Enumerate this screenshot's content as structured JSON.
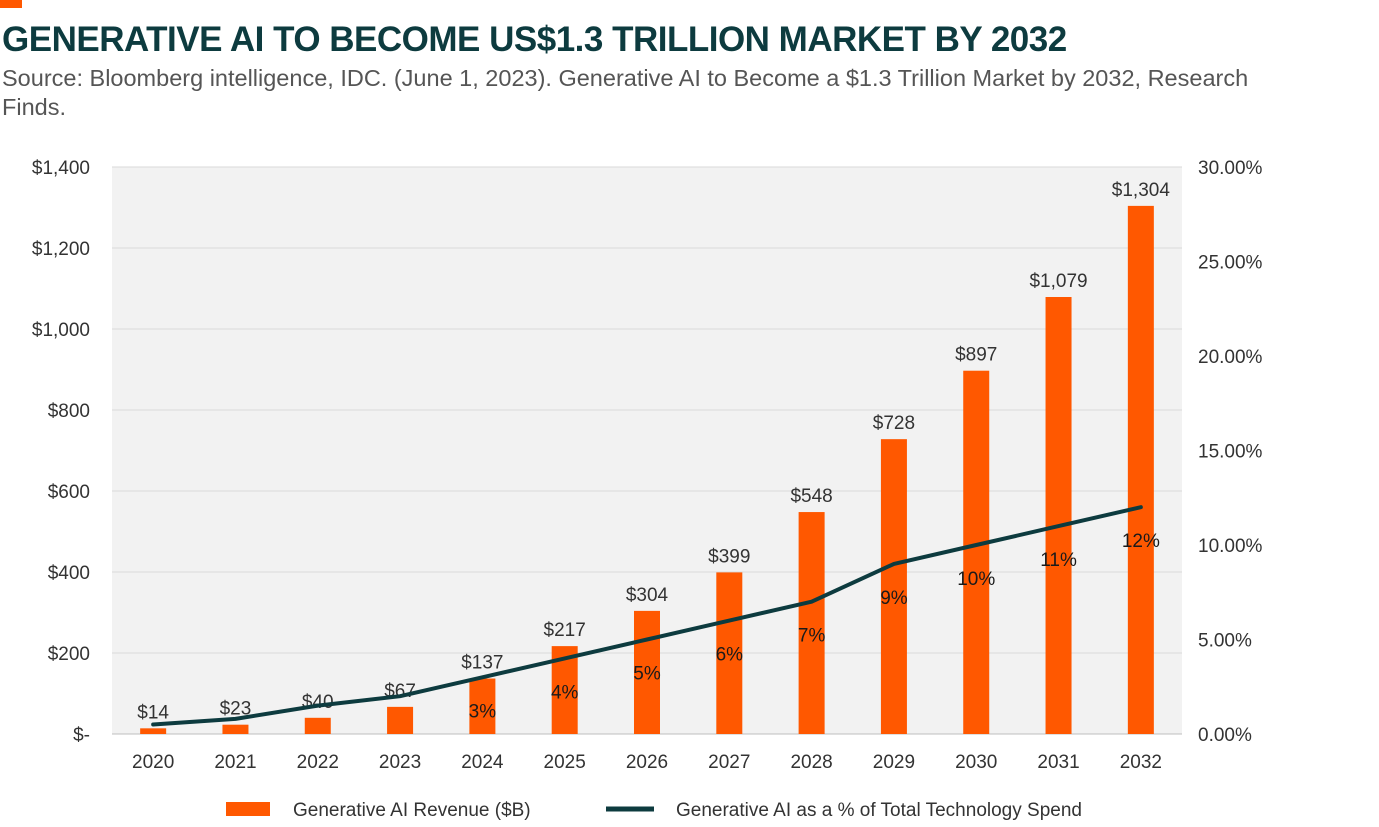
{
  "header": {
    "title": "GENERATIVE AI TO BECOME US$1.3 TRILLION MARKET BY 2032",
    "subtitle": "Source: Bloomberg intelligence, IDC. (June 1, 2023). Generative AI to Become a $1.3 Trillion Market by 2032, Research Finds."
  },
  "colors": {
    "bar": "#ff5800",
    "line": "#0d3b3f",
    "accent": "#ff5800",
    "plot_background": "#f2f2f2",
    "gridline": "#d9d9d9"
  },
  "chart_data": {
    "type": "bar",
    "categories": [
      "2020",
      "2021",
      "2022",
      "2023",
      "2024",
      "2025",
      "2026",
      "2027",
      "2028",
      "2029",
      "2030",
      "2031",
      "2032"
    ],
    "series": [
      {
        "name": "Generative AI Revenue ($B)",
        "type": "bar",
        "axis": "left",
        "values": [
          14,
          23,
          40,
          67,
          137,
          217,
          304,
          399,
          548,
          728,
          897,
          1079,
          1304
        ],
        "labels": [
          "$14",
          "$23",
          "$40",
          "$67",
          "$137",
          "$217",
          "$304",
          "$399",
          "$548",
          "$728",
          "$897",
          "$1,079",
          "$1,304"
        ]
      },
      {
        "name": "Generative AI as a % of Total Technology Spend",
        "type": "line",
        "axis": "right",
        "values": [
          0.5,
          0.8,
          1.5,
          2.0,
          3.0,
          4.0,
          5.0,
          6.0,
          7.0,
          9.0,
          10.0,
          11.0,
          12.0
        ],
        "labels": [
          "",
          "",
          "",
          "",
          "3%",
          "4%",
          "5%",
          "6%",
          "7%",
          "9%",
          "10%",
          "11%",
          "12%"
        ]
      }
    ],
    "y_left": {
      "ylim": [
        0,
        1400
      ],
      "ticks": [
        0,
        200,
        400,
        600,
        800,
        1000,
        1200,
        1400
      ],
      "tick_labels": [
        "$-",
        "$200",
        "$400",
        "$600",
        "$800",
        "$1,000",
        "$1,200",
        "$1,400"
      ]
    },
    "y_right": {
      "ylim": [
        0,
        30
      ],
      "ticks": [
        0,
        5,
        10,
        15,
        20,
        25,
        30
      ],
      "tick_labels": [
        "0.00%",
        "5.00%",
        "10.00%",
        "15.00%",
        "20.00%",
        "25.00%",
        "30.00%"
      ]
    },
    "grid": true,
    "legend_position": "bottom"
  }
}
